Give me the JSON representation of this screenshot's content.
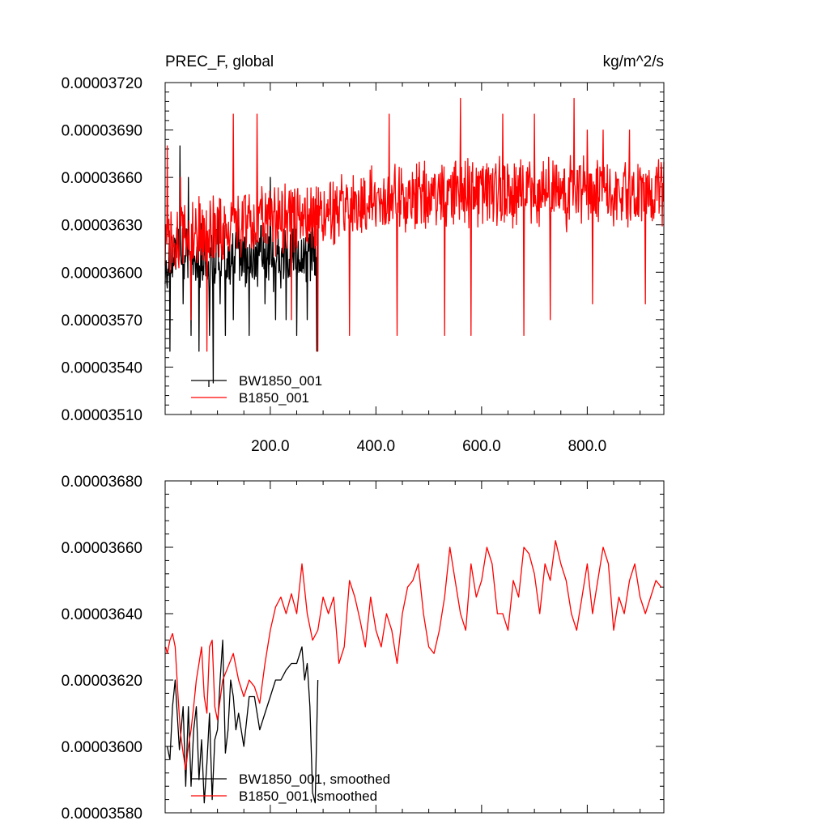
{
  "chart_data": [
    {
      "type": "line",
      "title_left": "PREC_F, global",
      "title_right": "kg/m^2/s",
      "xlim": [
        1,
        945
      ],
      "ylim": [
        3.51e-05,
        3.72e-05
      ],
      "x_ticks": [
        200,
        400,
        600,
        800
      ],
      "x_tick_labels": [
        "200.0",
        "400.0",
        "600.0",
        "800.0"
      ],
      "y_ticks": [
        3.51e-05,
        3.54e-05,
        3.57e-05,
        3.6e-05,
        3.63e-05,
        3.66e-05,
        3.69e-05,
        3.72e-05
      ],
      "y_tick_labels": [
        "0.00003510",
        "0.00003540",
        "0.00003570",
        "0.00003600",
        "0.00003630",
        "0.00003660",
        "0.00003690",
        "0.00003720"
      ],
      "legend_position": "bottom-left",
      "series": [
        {
          "name": "BW1850_001",
          "color": "#000000",
          "x_end": 290,
          "mean": 3.61e-05,
          "spread": 2.4e-07,
          "x": [
            5,
            10,
            20,
            29,
            35,
            45,
            50,
            55,
            65,
            75,
            85,
            92,
            100,
            105,
            115,
            130,
            140,
            150,
            160,
            175,
            190,
            200,
            210,
            220,
            230,
            240,
            250,
            260,
            270,
            280,
            288
          ],
          "y": [
            3.59e-05,
            3.55e-05,
            3.62e-05,
            3.68e-05,
            3.58e-05,
            3.66e-05,
            3.56e-05,
            3.61e-05,
            3.55e-05,
            3.62e-05,
            3.56e-05,
            3.53e-05,
            3.64e-05,
            3.58e-05,
            3.56e-05,
            3.57e-05,
            3.64e-05,
            3.6e-05,
            3.56e-05,
            3.62e-05,
            3.58e-05,
            3.66e-05,
            3.57e-05,
            3.59e-05,
            3.57e-05,
            3.63e-05,
            3.56e-05,
            3.6e-05,
            3.57e-05,
            3.63e-05,
            3.55e-05
          ]
        },
        {
          "name": "B1850_001",
          "color": "#ff0000",
          "x_end": 945,
          "mean_start": 3.62e-05,
          "mean_end": 3.65e-05,
          "spread": 2.5e-07,
          "x": [
            2,
            5,
            10,
            30,
            50,
            80,
            130,
            175,
            240,
            290,
            300,
            350,
            425,
            440,
            530,
            560,
            580,
            640,
            680,
            700,
            730,
            775,
            800,
            810,
            830,
            880,
            910,
            930
          ],
          "y": [
            3.63e-05,
            3.68e-05,
            3.6e-05,
            3.66e-05,
            3.57e-05,
            3.55e-05,
            3.7e-05,
            3.7e-05,
            3.57e-05,
            3.55e-05,
            3.62e-05,
            3.56e-05,
            3.7e-05,
            3.56e-05,
            3.56e-05,
            3.71e-05,
            3.56e-05,
            3.7e-05,
            3.56e-05,
            3.7e-05,
            3.57e-05,
            3.71e-05,
            3.69e-05,
            3.58e-05,
            3.69e-05,
            3.69e-05,
            3.58e-05,
            3.66e-05
          ]
        }
      ]
    },
    {
      "type": "line",
      "xlim": [
        1,
        945
      ],
      "ylim": [
        3.58e-05,
        3.68e-05
      ],
      "x_ticks": [
        200,
        400,
        600,
        800
      ],
      "y_ticks": [
        3.58e-05,
        3.6e-05,
        3.62e-05,
        3.64e-05,
        3.66e-05,
        3.68e-05
      ],
      "y_tick_labels": [
        "0.00003580",
        "0.00003600",
        "0.00003620",
        "0.00003640",
        "0.00003660",
        "0.00003680"
      ],
      "legend_position": "bottom-left",
      "series": [
        {
          "name": "BW1850_001, smoothed",
          "color": "#000000",
          "x": [
            5,
            10,
            15,
            20,
            28,
            35,
            40,
            45,
            50,
            55,
            60,
            65,
            70,
            75,
            80,
            85,
            90,
            95,
            100,
            105,
            110,
            115,
            120,
            125,
            130,
            135,
            140,
            150,
            160,
            170,
            180,
            190,
            200,
            210,
            220,
            230,
            240,
            250,
            260,
            265,
            270,
            275,
            280,
            285,
            290
          ],
          "y": [
            3.6e-05,
            3.596e-05,
            3.612e-05,
            3.62e-05,
            3.599e-05,
            3.612e-05,
            3.588e-05,
            3.612e-05,
            3.588e-05,
            3.605e-05,
            3.612e-05,
            3.59e-05,
            3.602e-05,
            3.583e-05,
            3.595e-05,
            3.61e-05,
            3.584e-05,
            3.602e-05,
            3.605e-05,
            3.62e-05,
            3.632e-05,
            3.598e-05,
            3.605e-05,
            3.62e-05,
            3.615e-05,
            3.605e-05,
            3.61e-05,
            3.6e-05,
            3.615e-05,
            3.615e-05,
            3.605e-05,
            3.61e-05,
            3.615e-05,
            3.62e-05,
            3.62e-05,
            3.623e-05,
            3.625e-05,
            3.625e-05,
            3.63e-05,
            3.62e-05,
            3.625e-05,
            3.612e-05,
            3.586e-05,
            3.583e-05,
            3.62e-05
          ]
        },
        {
          "name": "B1850_001, smoothed",
          "color": "#ff0000",
          "x": [
            2,
            5,
            10,
            15,
            20,
            25,
            30,
            35,
            40,
            45,
            50,
            55,
            60,
            65,
            70,
            75,
            80,
            85,
            90,
            95,
            100,
            110,
            120,
            130,
            140,
            150,
            160,
            170,
            180,
            190,
            200,
            210,
            220,
            230,
            240,
            250,
            260,
            270,
            280,
            290,
            300,
            310,
            320,
            330,
            340,
            350,
            360,
            370,
            380,
            390,
            400,
            410,
            420,
            430,
            440,
            450,
            460,
            470,
            480,
            490,
            500,
            510,
            520,
            530,
            540,
            550,
            560,
            570,
            580,
            590,
            600,
            610,
            620,
            630,
            640,
            650,
            660,
            670,
            680,
            690,
            700,
            710,
            720,
            730,
            740,
            750,
            760,
            770,
            780,
            790,
            800,
            810,
            820,
            830,
            840,
            850,
            860,
            870,
            880,
            890,
            900,
            910,
            920,
            930,
            940
          ],
          "y": [
            3.63e-05,
            3.628e-05,
            3.632e-05,
            3.634e-05,
            3.63e-05,
            3.616e-05,
            3.604e-05,
            3.598e-05,
            3.593e-05,
            3.6e-05,
            3.605e-05,
            3.612e-05,
            3.62e-05,
            3.625e-05,
            3.63e-05,
            3.615e-05,
            3.61e-05,
            3.63e-05,
            3.632e-05,
            3.612e-05,
            3.608e-05,
            3.62e-05,
            3.624e-05,
            3.628e-05,
            3.62e-05,
            3.615e-05,
            3.62e-05,
            3.618e-05,
            3.613e-05,
            3.625e-05,
            3.635e-05,
            3.642e-05,
            3.645e-05,
            3.64e-05,
            3.646e-05,
            3.64e-05,
            3.655e-05,
            3.64e-05,
            3.632e-05,
            3.635e-05,
            3.645e-05,
            3.64e-05,
            3.645e-05,
            3.625e-05,
            3.63e-05,
            3.65e-05,
            3.645e-05,
            3.638e-05,
            3.63e-05,
            3.645e-05,
            3.635e-05,
            3.63e-05,
            3.64e-05,
            3.635e-05,
            3.625e-05,
            3.64e-05,
            3.648e-05,
            3.65e-05,
            3.655e-05,
            3.64e-05,
            3.63e-05,
            3.628e-05,
            3.635e-05,
            3.645e-05,
            3.66e-05,
            3.65e-05,
            3.64e-05,
            3.635e-05,
            3.655e-05,
            3.645e-05,
            3.65e-05,
            3.66e-05,
            3.655e-05,
            3.64e-05,
            3.64e-05,
            3.635e-05,
            3.65e-05,
            3.645e-05,
            3.66e-05,
            3.658e-05,
            3.652e-05,
            3.64e-05,
            3.655e-05,
            3.65e-05,
            3.662e-05,
            3.655e-05,
            3.65e-05,
            3.64e-05,
            3.635e-05,
            3.645e-05,
            3.655e-05,
            3.64e-05,
            3.65e-05,
            3.66e-05,
            3.655e-05,
            3.635e-05,
            3.645e-05,
            3.64e-05,
            3.65e-05,
            3.655e-05,
            3.645e-05,
            3.64e-05,
            3.645e-05,
            3.65e-05,
            3.648e-05
          ]
        }
      ]
    }
  ]
}
